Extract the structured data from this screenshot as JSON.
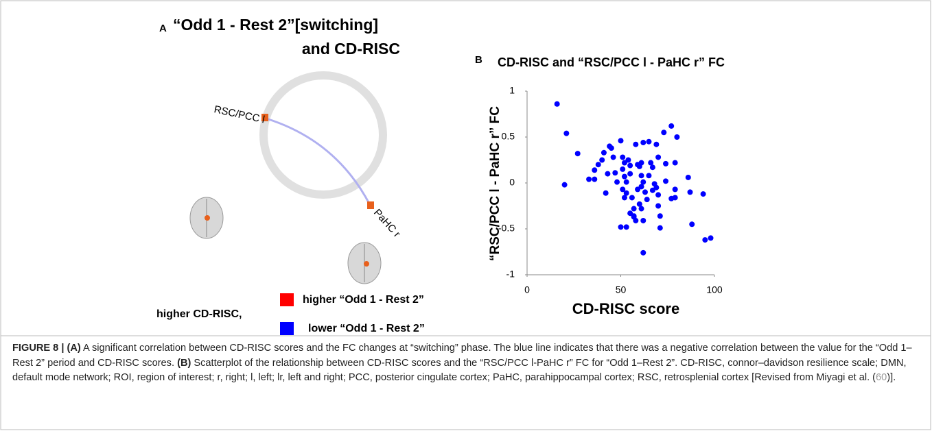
{
  "panel_a": {
    "label": "A",
    "title_line1": "“Odd 1 - Rest 2”[switching]",
    "title_line2": "and CD-RISC",
    "nodes": [
      {
        "label": "RSC/PCC l"
      },
      {
        "label": "PaHC r"
      }
    ],
    "legend": {
      "lead": "higher CD-RISC,",
      "higher": "higher “Odd 1 - Rest 2”",
      "lower": "lower “Odd 1 - Rest 2”"
    }
  },
  "chart_data": {
    "type": "scatter",
    "panel_label": "B",
    "title": "CD-RISC and “RSC/PCC l - PaHC r” FC",
    "x_label": "CD-RISC score",
    "y_label": "“RSC/PCC l - PaHC r” FC",
    "color": "#0000ff",
    "x": [
      16,
      21,
      20,
      27,
      33,
      36,
      36,
      38,
      41,
      40,
      44,
      45,
      43,
      42,
      46,
      47,
      48,
      51,
      50,
      51,
      52,
      52,
      53,
      54,
      50,
      53,
      55,
      55,
      56,
      57,
      57,
      58,
      59,
      60,
      61,
      62,
      61,
      62,
      61,
      59,
      52,
      53,
      51,
      55,
      57,
      58,
      60,
      61,
      62,
      62,
      64,
      63,
      65,
      66,
      65,
      68,
      69,
      70,
      67,
      69,
      71,
      71,
      70,
      73,
      77,
      80,
      79,
      74,
      74,
      79,
      77,
      79,
      86,
      87,
      88,
      95,
      98,
      94,
      70,
      67
    ],
    "values": [
      0.86,
      0.54,
      -0.02,
      0.32,
      0.04,
      0.04,
      0.14,
      0.2,
      0.33,
      0.25,
      0.4,
      0.38,
      0.1,
      -0.11,
      0.28,
      0.11,
      0.01,
      0.15,
      0.46,
      0.28,
      0.22,
      0.07,
      0.01,
      0.25,
      -0.48,
      -0.48,
      0.1,
      0.19,
      -0.16,
      -0.28,
      -0.36,
      0.42,
      0.2,
      0.18,
      0.22,
      0.01,
      0.08,
      0.44,
      -0.04,
      -0.07,
      -0.16,
      -0.11,
      -0.07,
      -0.33,
      -0.37,
      -0.41,
      -0.23,
      -0.28,
      -0.41,
      -0.76,
      -0.18,
      -0.1,
      0.08,
      0.22,
      0.45,
      -0.01,
      -0.05,
      -0.13,
      -0.08,
      0.42,
      -0.36,
      -0.49,
      0.28,
      0.55,
      0.62,
      0.5,
      0.22,
      0.21,
      0.02,
      -0.07,
      -0.17,
      -0.16,
      0.06,
      -0.1,
      -0.45,
      -0.62,
      -0.6,
      -0.12,
      -0.25,
      0.17
    ],
    "xlim": [
      0,
      100
    ],
    "xticks": [
      0,
      50,
      100
    ],
    "ylim": [
      -1,
      1
    ],
    "yticks": [
      1,
      0.5,
      0,
      -0.5,
      -1
    ],
    "grid": false
  },
  "caption": {
    "figure_label": "FIGURE 8 |",
    "label_a": "(A)",
    "text_a": "A significant correlation between CD-RISC scores and the FC changes at “switching” phase. The blue line indicates that there was a negative correlation between the value for the “Odd 1–Rest 2” period and CD-RISC scores.",
    "label_b": "(B)",
    "text_b": "Scatterplot of the relationship between CD-RISC scores and the “RSC/PCC l-PaHC r” FC for “Odd 1–Rest 2”. CD-RISC, connor–davidson resilience scale; DMN, default mode network; ROI, region of interest; r, right; l, left; lr, left and right; PCC, posterior cingulate cortex; PaHC, parahippocampal cortex; RSC, retrosplenial cortex [Revised from Miyagi et al. (",
    "ref": "60",
    "text_end": ")]."
  }
}
